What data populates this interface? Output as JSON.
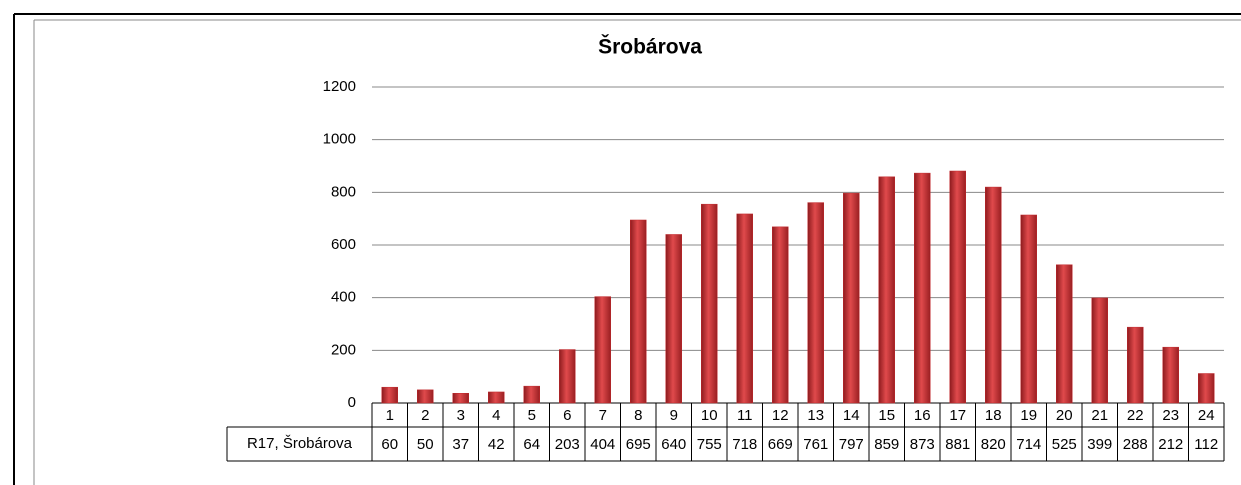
{
  "chart_data": {
    "type": "bar",
    "title": "Šrobárova",
    "categories": [
      "1",
      "2",
      "3",
      "4",
      "5",
      "6",
      "7",
      "8",
      "9",
      "10",
      "11",
      "12",
      "13",
      "14",
      "15",
      "16",
      "17",
      "18",
      "19",
      "20",
      "21",
      "22",
      "23",
      "24"
    ],
    "series": [
      {
        "name": "R17, Šrobárova",
        "color": "#c0282c",
        "values": [
          60,
          50,
          37,
          42,
          64,
          203,
          404,
          695,
          640,
          755,
          718,
          669,
          761,
          797,
          859,
          873,
          881,
          820,
          714,
          525,
          399,
          288,
          212,
          112
        ]
      }
    ],
    "ylim": [
      0,
      1200
    ],
    "yticks": [
      0,
      200,
      400,
      600,
      800,
      1000,
      1200
    ],
    "grid": true
  }
}
